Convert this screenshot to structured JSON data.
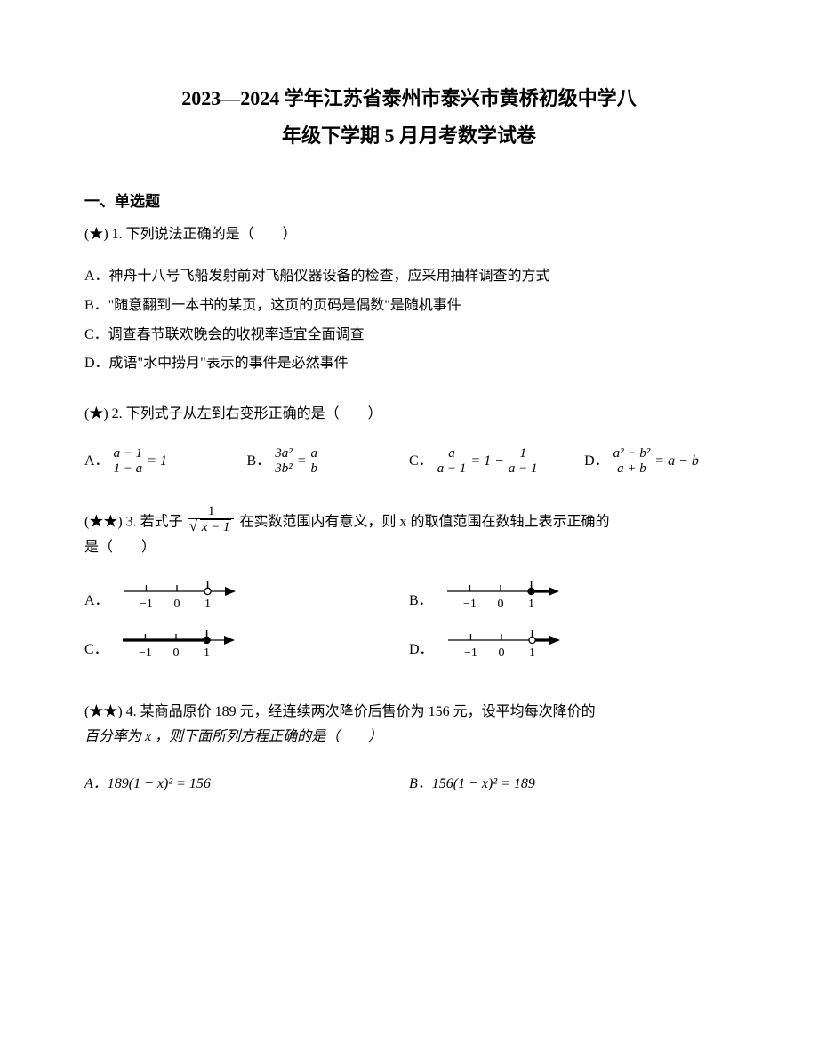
{
  "title_line1": "2023―2024 学年江苏省泰州市泰兴市黄桥初级中学八",
  "title_line2": "年级下学期 5 月月考数学试卷",
  "section1": "一、单选题",
  "q1": {
    "diff": "(★)",
    "num": "1.",
    "stem": "下列说法正确的是（　　）",
    "A": "A．神舟十八号飞船发射前对飞船仪器设备的检查，应采用抽样调查的方式",
    "B": "B．\"随意翻到一本书的某页，这页的页码是偶数\"是随机事件",
    "C": "C．调查春节联欢晚会的收视率适宜全面调查",
    "D": "D．成语\"水中捞月\"表示的事件是必然事件"
  },
  "q2": {
    "diff": "(★)",
    "num": "2.",
    "stem": "下列式子从左到右变形正确的是（　　）",
    "A_label": "A．",
    "A_num": "a − 1",
    "A_den": "1 − a",
    "A_rhs": " = 1",
    "B_label": "B．",
    "B_num": "3a²",
    "B_den": "3b²",
    "B_rnum": "a",
    "B_rden": "b",
    "C_label": "C．",
    "C_num": "a",
    "C_den": "a − 1",
    "C_mid": " = 1 − ",
    "C_rnum": "1",
    "C_rden": "a − 1",
    "D_label": "D．",
    "D_num": "a² − b²",
    "D_den": "a + b",
    "D_rhs": " = a − b"
  },
  "q3": {
    "diff": "(★★)",
    "num": "3.",
    "stem_pre": "若式子 ",
    "frac_num": "1",
    "rad_inner": "x − 1",
    "stem_post": " 在实数范围内有意义，则 x 的取值范围在数轴上表示正确的",
    "stem_line2": "是（　　）",
    "A": "A．",
    "B": "B．",
    "C": "C．",
    "D": "D．",
    "ticks": [
      "−1",
      "0",
      "1"
    ],
    "variants": {
      "A": {
        "filled": false,
        "thickRight": false,
        "leftRay": false
      },
      "B": {
        "filled": true,
        "thickRight": true,
        "leftRay": false
      },
      "C": {
        "filled": true,
        "thickRight": false,
        "leftRay": true
      },
      "D": {
        "filled": false,
        "thickRight": true,
        "leftRay": false
      }
    },
    "colors": {
      "line": "#000000",
      "bg": "#ffffff"
    }
  },
  "q4": {
    "diff": "(★★)",
    "num": "4.",
    "stem_l1": "某商品原价 189 元，经连续两次降价后售价为 156 元，设平均每次降价的",
    "stem_l2": "百分率为 x ，则下面所列方程正确的是（　　）",
    "A": "A．189(1 − x)² = 156",
    "B": "B．156(1 − x)² = 189"
  }
}
